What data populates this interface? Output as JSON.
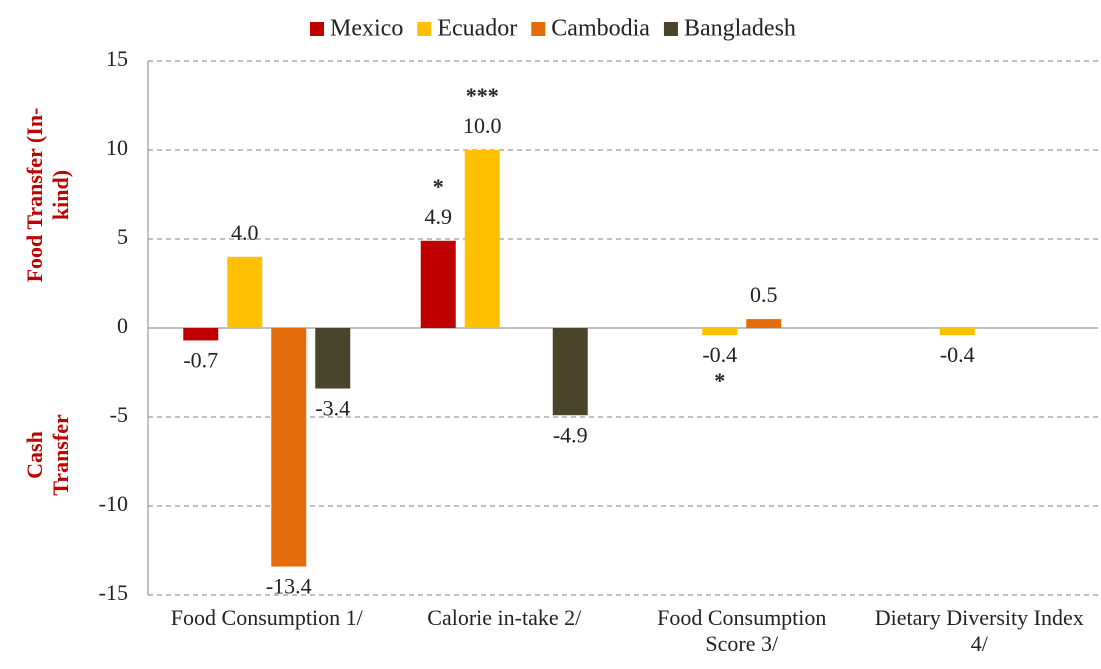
{
  "chart_data": {
    "type": "bar",
    "categories": [
      "Food Consumption 1/",
      "Calorie in-take 2/",
      "Food Consumption Score 3/",
      "Dietary Diversity Index 4/"
    ],
    "series": [
      {
        "name": "Mexico",
        "color": "#C00000",
        "values": [
          -0.7,
          4.9,
          null,
          null
        ],
        "value_labels": [
          "-0.7",
          "4.9",
          null,
          null
        ],
        "stars": [
          null,
          "*",
          null,
          null
        ]
      },
      {
        "name": "Ecuador",
        "color": "#FFC000",
        "values": [
          4.0,
          10.0,
          -0.4,
          -0.4
        ],
        "value_labels": [
          "4.0",
          "10.0",
          "-0.4",
          "-0.4"
        ],
        "stars": [
          null,
          "***",
          "*",
          null
        ]
      },
      {
        "name": "Cambodia",
        "color": "#E46C0A",
        "values": [
          -13.4,
          null,
          0.5,
          null
        ],
        "value_labels": [
          "-13.4",
          null,
          "0.5",
          null
        ],
        "stars": [
          null,
          null,
          null,
          null
        ]
      },
      {
        "name": "Bangladesh",
        "color": "#4A452A",
        "values": [
          -3.4,
          -4.9,
          null,
          null
        ],
        "value_labels": [
          "-3.4",
          "-4.9",
          null,
          null
        ],
        "stars": [
          null,
          null,
          null,
          null
        ]
      }
    ],
    "ylim": [
      -15,
      15
    ],
    "yticks": [
      -15,
      -10,
      -5,
      0,
      5,
      10,
      15
    ],
    "ylabel_top": "Food Transfer (In-kind)",
    "ylabel_bottom": "Cash Transfer",
    "grid": true,
    "legend": "top"
  }
}
